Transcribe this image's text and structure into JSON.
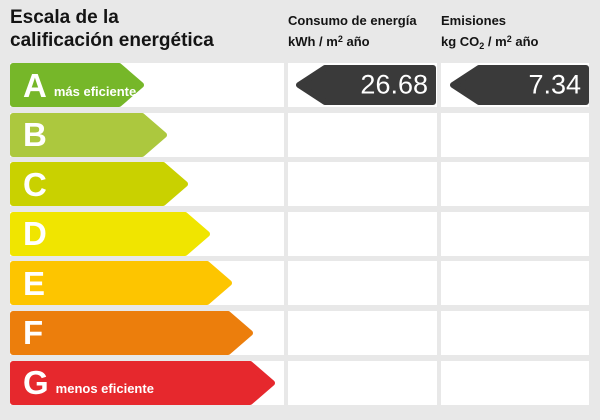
{
  "title": {
    "line1": "Escala de la",
    "line2": "calificación energética"
  },
  "consumo": {
    "header": "Consumo de energía",
    "unit_pre": "kWh / m",
    "unit_sup": "2",
    "unit_post": " año",
    "value": "26.68"
  },
  "emisiones": {
    "header": "Emisiones",
    "unit_pre": "kg CO",
    "unit_sub": "2",
    "unit_mid": " / m",
    "unit_sup": "2",
    "unit_post": " año",
    "value": "7.34"
  },
  "scale": {
    "rows": [
      {
        "letter": "A",
        "label": "más eficiente",
        "color": "#76b729",
        "arrow_width": 134
      },
      {
        "letter": "B",
        "label": "",
        "color": "#acc83e",
        "arrow_width": 157
      },
      {
        "letter": "C",
        "label": "",
        "color": "#c9d100",
        "arrow_width": 178
      },
      {
        "letter": "D",
        "label": "",
        "color": "#f0e500",
        "arrow_width": 200
      },
      {
        "letter": "E",
        "label": "",
        "color": "#fdc500",
        "arrow_width": 222
      },
      {
        "letter": "F",
        "label": "",
        "color": "#ec7e0c",
        "arrow_width": 243
      },
      {
        "letter": "G",
        "label": "menos eficiente",
        "color": "#e6282d",
        "arrow_width": 265
      }
    ]
  },
  "colors": {
    "background": "#e8e8e8",
    "cell": "#ffffff",
    "badge": "#3a3a3a",
    "text": "#141414",
    "arrow_text": "#ffffff"
  },
  "chart_data": {
    "type": "bar",
    "title": "Escala de la calificación energética",
    "categories": [
      "A",
      "B",
      "C",
      "D",
      "E",
      "F",
      "G"
    ],
    "category_notes": {
      "A": "más eficiente",
      "G": "menos eficiente"
    },
    "bar_colors": [
      "#76b729",
      "#acc83e",
      "#c9d100",
      "#f0e500",
      "#fdc500",
      "#ec7e0c",
      "#e6282d"
    ],
    "bar_relative_lengths": [
      134,
      157,
      178,
      200,
      222,
      243,
      265
    ],
    "indicators": [
      {
        "name": "Consumo de energía",
        "unit": "kWh / m² año",
        "value": 26.68,
        "rating": "A"
      },
      {
        "name": "Emisiones",
        "unit": "kg CO₂ / m² año",
        "value": 7.34,
        "rating": "A"
      }
    ],
    "legend_position": "none",
    "grid": false
  }
}
